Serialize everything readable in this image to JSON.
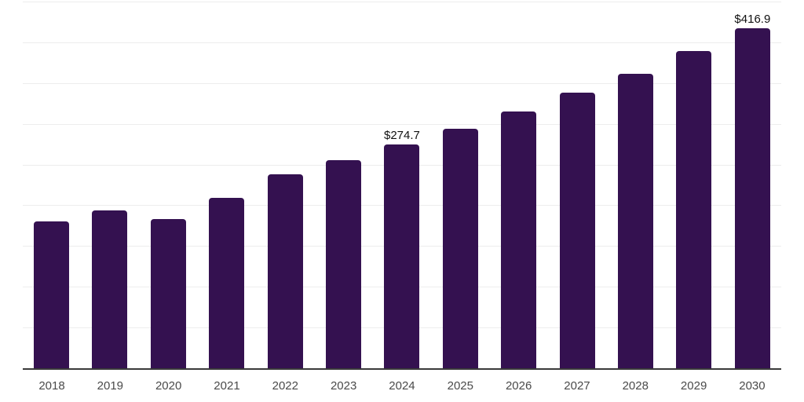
{
  "chart_data": {
    "type": "bar",
    "title": "",
    "xlabel": "",
    "ylabel": "",
    "categories": [
      "2018",
      "2019",
      "2020",
      "2021",
      "2022",
      "2023",
      "2024",
      "2025",
      "2026",
      "2027",
      "2028",
      "2029",
      "2030"
    ],
    "values": [
      180,
      194,
      183,
      209,
      238.5,
      255.5,
      274.7,
      294,
      315,
      338,
      361.5,
      389,
      416.9
    ],
    "data_labels": {
      "6": "$274.7",
      "12": "$416.9"
    },
    "ylim": [
      0,
      450
    ],
    "gridline_step": 50,
    "grid": "horizontal-only",
    "legend": "none",
    "colors": {
      "bar": "#341150",
      "axis_line": "#3a3a3a",
      "gridline": "#ededed",
      "tick_label": "#4a4a4a",
      "data_label": "#111111",
      "background": "#ffffff"
    }
  }
}
